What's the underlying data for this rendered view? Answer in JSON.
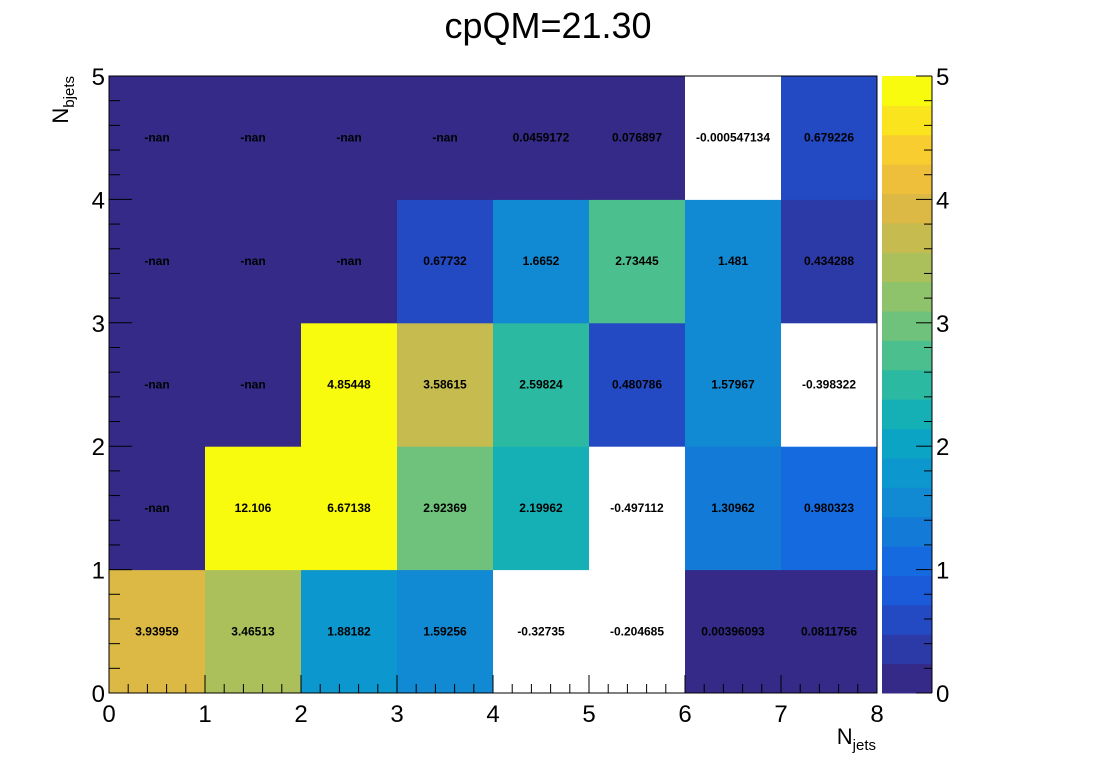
{
  "chart_data": {
    "type": "heatmap",
    "title": "cpQM=21.30",
    "xlabel": {
      "base": "N",
      "sub": "jets"
    },
    "ylabel": {
      "base": "N",
      "sub": "bjets"
    },
    "xlim": [
      0,
      8
    ],
    "ylim": [
      0,
      5
    ],
    "zlim": [
      0,
      5
    ],
    "x_ticks": [
      "0",
      "1",
      "2",
      "3",
      "4",
      "5",
      "6",
      "7",
      "8"
    ],
    "y_ticks": [
      "0",
      "1",
      "2",
      "3",
      "4",
      "5"
    ],
    "z_ticks": [
      "0",
      "1",
      "2",
      "3",
      "4",
      "5"
    ],
    "colormap": [
      "#352a87",
      "#2c3aa8",
      "#2349c3",
      "#1b5ad9",
      "#166ae0",
      "#137ad8",
      "#1189d3",
      "#0c97ce",
      "#0ca4c4",
      "#15b0b5",
      "#2bb9a2",
      "#4cbf8f",
      "#6ec27c",
      "#8ec36b",
      "#abc05b",
      "#c5bb4f",
      "#dcb845",
      "#eebf3a",
      "#f8cd2f",
      "#f9e41e",
      "#f9fb0e"
    ],
    "empty_color": "#ffffff",
    "rows": [
      {
        "y_bin": [
          0,
          1
        ],
        "labels": [
          "3.93959",
          "3.46513",
          "1.88182",
          "1.59256",
          "-0.32735",
          "-0.204685",
          "0.00396093",
          "0.0811756"
        ]
      },
      {
        "y_bin": [
          1,
          2
        ],
        "labels": [
          "-nan",
          "12.106",
          "6.67138",
          "2.92369",
          "2.19962",
          "-0.497112",
          "1.30962",
          "0.980323"
        ]
      },
      {
        "y_bin": [
          2,
          3
        ],
        "labels": [
          "-nan",
          "-nan",
          "4.85448",
          "3.58615",
          "2.59824",
          "0.480786",
          "1.57967",
          "-0.398322"
        ]
      },
      {
        "y_bin": [
          3,
          4
        ],
        "labels": [
          "-nan",
          "-nan",
          "-nan",
          "0.67732",
          "1.6652",
          "2.73445",
          "1.481",
          "0.434288"
        ]
      },
      {
        "y_bin": [
          4,
          5
        ],
        "labels": [
          "-nan",
          "-nan",
          "-nan",
          "-nan",
          "0.0459172",
          "0.076897",
          "-0.000547134",
          "0.679226"
        ]
      }
    ]
  }
}
